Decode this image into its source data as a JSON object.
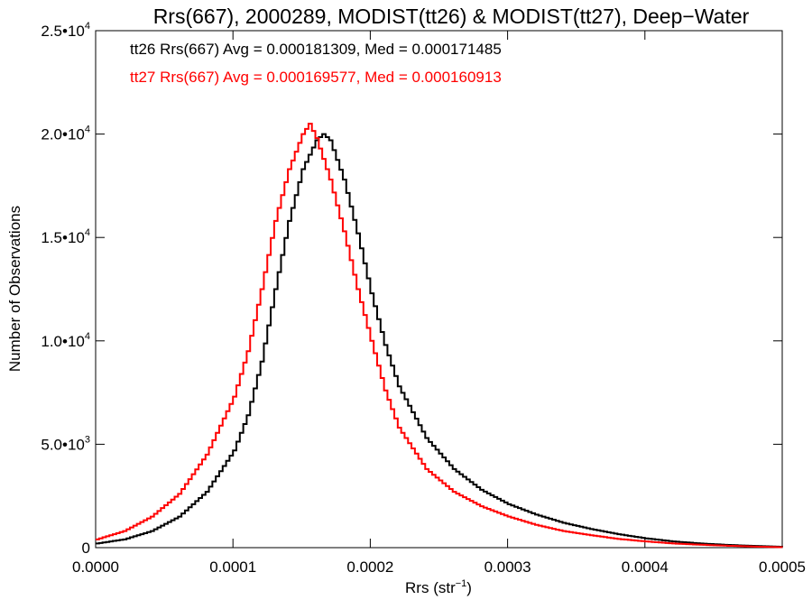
{
  "chart_data": {
    "type": "line",
    "title": "Rrs(667), 2000289, MODIST(tt26) & MODIST(tt27), Deep−Water",
    "xlabel": "Rrs (str",
    "xlabel_sup": "−1",
    "xlabel_tail": ")",
    "ylabel": "Number of Observations",
    "xlim": [
      0.0,
      0.0005
    ],
    "ylim": [
      0,
      25000
    ],
    "x_ticks": [
      {
        "value": 0.0,
        "label": "0.0000"
      },
      {
        "value": 0.0001,
        "label": "0.0001"
      },
      {
        "value": 0.0002,
        "label": "0.0002"
      },
      {
        "value": 0.0003,
        "label": "0.0003"
      },
      {
        "value": 0.0004,
        "label": "0.0004"
      },
      {
        "value": 0.0005,
        "label": "0.0005"
      }
    ],
    "y_ticks": [
      {
        "value": 0,
        "mant": "0",
        "exp": ""
      },
      {
        "value": 5000,
        "mant": "5.0•10",
        "exp": "3"
      },
      {
        "value": 10000,
        "mant": "1.0•10",
        "exp": "4"
      },
      {
        "value": 15000,
        "mant": "1.5•10",
        "exp": "4"
      },
      {
        "value": 20000,
        "mant": "2.0•10",
        "exp": "4"
      },
      {
        "value": 25000,
        "mant": "2.5•10",
        "exp": "4"
      }
    ],
    "annotations": [
      {
        "text": "tt26 Rrs(667) Avg = 0.000181309, Med = 0.000171485",
        "color": "#000000"
      },
      {
        "text": "tt27 Rrs(667) Avg = 0.000169577, Med = 0.000160913",
        "color": "#ff0000"
      }
    ],
    "series": [
      {
        "color": "#000000",
        "x": [
          0.0,
          2e-05,
          4e-05,
          6e-05,
          8e-05,
          0.0001,
          0.00011,
          0.00012,
          0.00013,
          0.00014,
          0.00015,
          0.00016,
          0.000165,
          0.00017,
          0.00018,
          0.00019,
          0.0002,
          0.00021,
          0.00022,
          0.00024,
          0.00026,
          0.00028,
          0.0003,
          0.00032,
          0.00034,
          0.00036,
          0.00038,
          0.0004,
          0.00042,
          0.00044,
          0.00046,
          0.00048,
          0.0005
        ],
        "y": [
          200,
          400,
          800,
          1500,
          2700,
          4700,
          6400,
          9000,
          12500,
          15800,
          18300,
          19700,
          20000,
          19700,
          17800,
          15200,
          12300,
          9800,
          7800,
          5300,
          3800,
          2800,
          2100,
          1600,
          1200,
          900,
          650,
          450,
          300,
          200,
          130,
          80,
          40
        ]
      },
      {
        "color": "#ff0000",
        "x": [
          0.0,
          2e-05,
          4e-05,
          6e-05,
          8e-05,
          0.0001,
          0.00011,
          0.00012,
          0.00013,
          0.00014,
          0.00015,
          0.000155,
          0.00016,
          0.00017,
          0.00018,
          0.00019,
          0.0002,
          0.00021,
          0.00022,
          0.00024,
          0.00026,
          0.00028,
          0.0003,
          0.00032,
          0.00034,
          0.00036,
          0.00038,
          0.0004,
          0.00042,
          0.00044,
          0.00046,
          0.00048,
          0.0005
        ],
        "y": [
          400,
          800,
          1500,
          2600,
          4500,
          7300,
          9500,
          12500,
          15800,
          18300,
          20000,
          20500,
          19800,
          17800,
          15300,
          12500,
          10000,
          7600,
          5800,
          3800,
          2700,
          2000,
          1500,
          1100,
          800,
          600,
          420,
          300,
          200,
          140,
          90,
          50,
          20
        ]
      }
    ]
  }
}
